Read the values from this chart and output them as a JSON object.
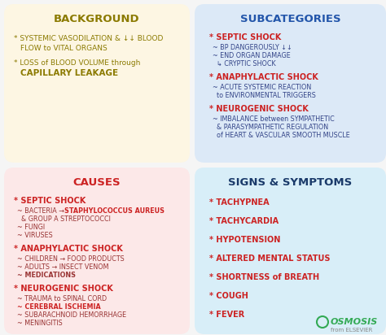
{
  "bg_color": "#f5f5f5",
  "background_box": {
    "color": "#fdf6e3",
    "title": "BACKGROUND",
    "title_color": "#8B7A00",
    "line1": "* SYSTEMIC VASODILATION & ↓↓ BLOOD\n  FLOW to VITAL ORGANS",
    "line2a": "* LOSS of BLOOD VOLUME through",
    "line2b": "  CAPILLARY LEAKAGE",
    "text_color": "#8B7A00"
  },
  "subcategories_box": {
    "color": "#dce9f7",
    "title": "SUBCATEGORIES",
    "title_color": "#2255aa",
    "items": [
      {
        "heading": "* SEPTIC SHOCK",
        "lines": [
          "~ BP DANGEROUSLY ↓↓",
          "~ END ORGAN DAMAGE",
          "  ↳ CRYPTIC SHOCK"
        ]
      },
      {
        "heading": "* ANAPHYLACTIC SHOCK",
        "lines": [
          "~ ACUTE SYSTEMIC REACTION",
          "  to ENVIRONMENTAL TRIGGERS"
        ]
      },
      {
        "heading": "* NEUROGENIC SHOCK",
        "lines": [
          "~ IMBALANCE between SYMPATHETIC",
          "  & PARASYMPATHETIC REGULATION",
          "  of HEART & VASCULAR SMOOTH MUSCLE"
        ]
      }
    ],
    "heading_color": "#cc2222",
    "text_color": "#334488"
  },
  "causes_box": {
    "color": "#fce8e8",
    "title": "CAUSES",
    "title_color": "#cc2222",
    "items": [
      {
        "heading": "* SEPTIC SHOCK",
        "lines": [
          "~ BACTERIA → ",
          "STAPHYLOCOCCUS AUREUS",
          "  & GROUP A STREPTOCOCCI",
          "~ FUNGI",
          "~ VIRUSES"
        ]
      },
      {
        "heading": "* ANAPHYLACTIC SHOCK",
        "lines": [
          "~ CHILDREN → FOOD PRODUCTS",
          "~ ADULTS → INSECT VENOM",
          "~ MEDICATIONS"
        ]
      },
      {
        "heading": "* NEUROGENIC SHOCK",
        "lines": [
          "~ TRAUMA to SPINAL CORD",
          "~ CEREBRAL ISCHEMIA",
          "~ SUBARACHNOID HEMORRHAGE",
          "~ MENINGITIS"
        ],
        "bold_line": 1
      }
    ],
    "heading_color": "#cc2222",
    "text_color": "#993333"
  },
  "signs_box": {
    "color": "#d8eef8",
    "title": "SIGNS & SYMPTOMS",
    "title_color": "#1a3a6a",
    "items": [
      "* TACHYPNEA",
      "* TACHYCARDIA",
      "* HYPOTENSION",
      "* ALTERED MENTAL STATUS",
      "* SHORTNESS of BREATH",
      "* COUGH",
      "* FEVER"
    ],
    "text_color": "#cc2222"
  },
  "osmosis_color": "#33aa55",
  "osmosis_text": "OSMOSIS",
  "elsevier_text": "from ELSEVIER"
}
